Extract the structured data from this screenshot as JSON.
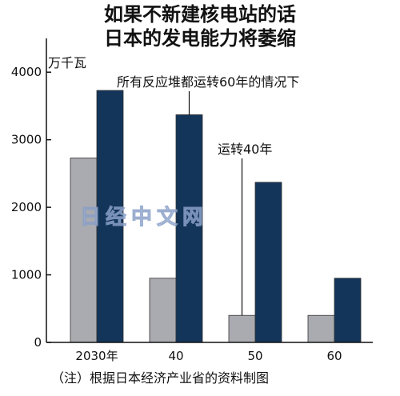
{
  "chart_data": {
    "type": "bar",
    "title_lines": [
      "如果不新建核电站的话",
      "日本的发电能力将萎缩"
    ],
    "unit_label": "万千瓦",
    "categories": [
      "2030年",
      "40",
      "50",
      "60"
    ],
    "series": [
      {
        "name": "运转40年",
        "values": [
          2730,
          950,
          400,
          400
        ],
        "color": "#a9abb0"
      },
      {
        "name": "所有反应堆都运转60年的情况下",
        "values": [
          3730,
          3370,
          2370,
          950
        ],
        "color": "#13355a"
      }
    ],
    "ylim": [
      0,
      4500
    ],
    "yticks": [
      0,
      1000,
      2000,
      3000,
      4000
    ],
    "grid": false,
    "note": "（注）根据日本经济产业省的资料制图",
    "watermark": "日经中文网"
  }
}
